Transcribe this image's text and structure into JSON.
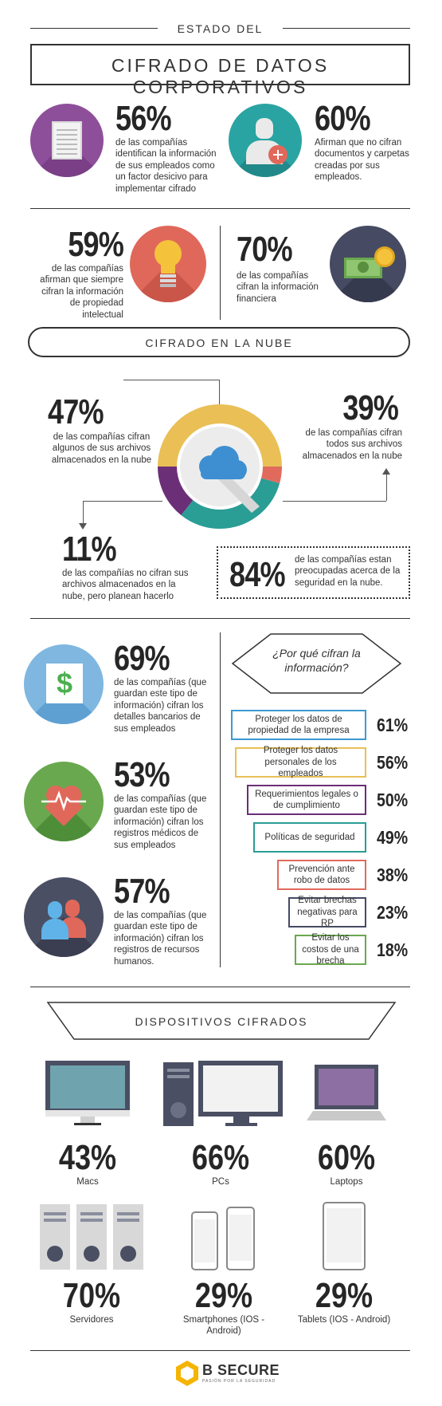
{
  "header": {
    "subtitle": "ESTADO DEL",
    "title": "CIFRADO DE DATOS CORPORATIVOS"
  },
  "stats_top": [
    {
      "pct": "56%",
      "text": "de las compañías identifican la información de sus empleados como un factor desicivo para implementar cifrado",
      "icon": "document-icon",
      "color": "#8e4f9a"
    },
    {
      "pct": "60%",
      "text": "Afirman que no cifran documentos y carpetas creadas por sus empleados.",
      "icon": "employee-add-icon",
      "color": "#2aa3a3"
    },
    {
      "pct": "59%",
      "text": "de las compañías afirman que siempre cifran la información de propiedad intelectual",
      "icon": "lightbulb-icon",
      "color": "#e0685a"
    },
    {
      "pct": "70%",
      "text": "de las compañías cifran la información financiera",
      "icon": "money-icon",
      "color": "#464b63"
    }
  ],
  "cloud": {
    "section_title": "CIFRADO EN LA NUBE",
    "stats": [
      {
        "pct": "47%",
        "text": "de las compañías cifran algunos de sus archivos almacenados en la nube"
      },
      {
        "pct": "39%",
        "text": "de las compañías cifran todos sus archivos almacenados en la nube"
      },
      {
        "pct": "11%",
        "text": "de las compañías no cifran sus archivos almacenados en la nube, pero planean hacerlo"
      },
      {
        "pct": "84%",
        "text": "de las compañías estan preocupadas acerca de la seguridad en la nube."
      }
    ],
    "donut_colors": [
      "#e9bf56",
      "#e06b5d",
      "#2a9d95",
      "#6b2f77"
    ]
  },
  "employee_data": [
    {
      "pct": "69%",
      "text": "de las compañías (que guardan este tipo de información) cifran los detalles bancarios de sus empleados",
      "icon": "dollar-icon",
      "color": "#7fb7e0"
    },
    {
      "pct": "53%",
      "text": "de las compañías (que guardan este tipo de información) cifran los registros médicos de sus empleados",
      "icon": "heart-icon",
      "color": "#6aa84f"
    },
    {
      "pct": "57%",
      "text": "de las compañías (que guardan este tipo de información) cifran los registros de recursos humanos.",
      "icon": "people-icon",
      "color": "#4a4f63"
    }
  ],
  "reasons": {
    "title": "¿Por qué cifran la información?",
    "items": [
      {
        "label": "Proteger los datos de propiedad de la empresa",
        "pct": "61%",
        "color": "#3d9ad1"
      },
      {
        "label": "Proteger los datos personales de los empleados",
        "pct": "56%",
        "color": "#e9bf56"
      },
      {
        "label": "Requerimientos legales o de cumplimiento",
        "pct": "50%",
        "color": "#6b2f77"
      },
      {
        "label": "Políticas de seguridad",
        "pct": "49%",
        "color": "#2a9d95"
      },
      {
        "label": "Prevención ante robo de datos",
        "pct": "38%",
        "color": "#e06b5d"
      },
      {
        "label": "Evitar brechas negativas para RP",
        "pct": "23%",
        "color": "#464b63"
      },
      {
        "label": "Evitar los costos de una brecha",
        "pct": "18%",
        "color": "#6aa84f"
      }
    ]
  },
  "devices": {
    "section_title": "DISPOSITIVOS CIFRADOS",
    "items": [
      {
        "pct": "43%",
        "label": "Macs",
        "icon": "imac-icon"
      },
      {
        "pct": "66%",
        "label": "PCs",
        "icon": "desktop-pc-icon"
      },
      {
        "pct": "60%",
        "label": "Laptops",
        "icon": "laptop-icon"
      },
      {
        "pct": "70%",
        "label": "Servidores",
        "icon": "server-icon"
      },
      {
        "pct": "29%",
        "label": "Smartphones (IOS - Android)",
        "icon": "smartphone-icon"
      },
      {
        "pct": "29%",
        "label": "Tablets (IOS - Android)",
        "icon": "tablet-icon"
      }
    ]
  },
  "footer": {
    "brand": "B SECURE",
    "tagline": "PASIÓN POR LA SEGURIDAD"
  }
}
